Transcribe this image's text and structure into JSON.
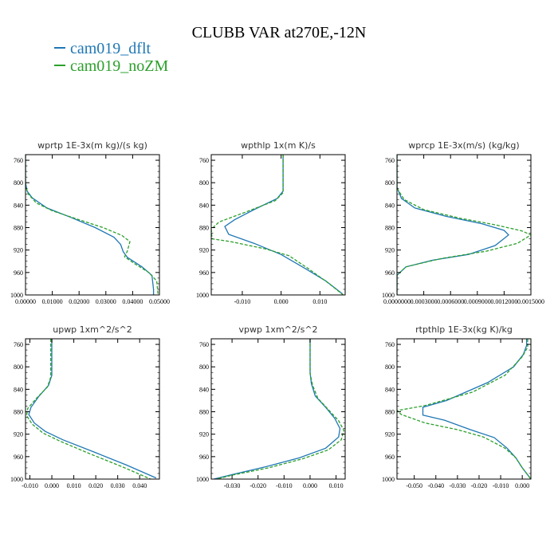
{
  "title": "CLUBB VAR at270E,-12N",
  "legend": [
    {
      "name": "cam019_dflt",
      "color": "#1f77b4"
    },
    {
      "name": "cam019_noZM",
      "color": "#2ca02c"
    }
  ],
  "chart_data": [
    {
      "type": "line",
      "title": "wprtp  1E-3x(m kg)/(s kg)",
      "xlim": [
        0.0,
        0.05
      ],
      "xticks": [
        0.0,
        0.01,
        0.02,
        0.03,
        0.04,
        0.05
      ],
      "xticklabels": [
        "0.00000",
        "0.01000",
        "0.02000",
        "0.03000",
        "0.04000",
        "0.05000"
      ],
      "ylim": [
        1000,
        750
      ],
      "yticks": [
        760,
        800,
        840,
        880,
        920,
        960,
        1000
      ],
      "yticklabels": [
        "760",
        "800",
        "840",
        "880",
        "920",
        "960",
        "1000"
      ],
      "series": [
        {
          "name": "cam019_dflt",
          "style": "solid",
          "points": [
            [
              0,
              750
            ],
            [
              0,
              800
            ],
            [
              0.0006,
              815
            ],
            [
              0.0025,
              827
            ],
            [
              0.008,
              845
            ],
            [
              0.017,
              862
            ],
            [
              0.026,
              880
            ],
            [
              0.033,
              897
            ],
            [
              0.0355,
              910
            ],
            [
              0.0365,
              923
            ],
            [
              0.038,
              933
            ],
            [
              0.0435,
              950
            ],
            [
              0.0472,
              965
            ],
            [
              0.0478,
              990
            ],
            [
              0.0478,
              1000
            ]
          ]
        },
        {
          "name": "cam019_noZM",
          "style": "dashed",
          "points": [
            [
              0,
              750
            ],
            [
              0,
              806
            ],
            [
              0.001,
              820
            ],
            [
              0.004,
              836
            ],
            [
              0.01,
              850
            ],
            [
              0.02,
              866
            ],
            [
              0.029,
              880
            ],
            [
              0.036,
              894
            ],
            [
              0.039,
              905
            ],
            [
              0.038,
              922
            ],
            [
              0.037,
              932
            ],
            [
              0.041,
              945
            ],
            [
              0.046,
              960
            ],
            [
              0.049,
              975
            ],
            [
              0.0495,
              1000
            ]
          ]
        }
      ]
    },
    {
      "type": "line",
      "title": "wpthlp  1x(m K)/s",
      "xlim": [
        -0.018,
        0.0165
      ],
      "xticks": [
        -0.01,
        0.0,
        0.01
      ],
      "xticklabels": [
        "-0.010",
        "0.000",
        "0.010"
      ],
      "ylim": [
        1000,
        750
      ],
      "yticks": [
        760,
        800,
        840,
        880,
        920,
        960,
        1000
      ],
      "yticklabels": [
        "760",
        "800",
        "840",
        "880",
        "920",
        "960",
        "1000"
      ],
      "series": [
        {
          "name": "cam019_dflt",
          "style": "solid",
          "points": [
            [
              0.0005,
              750
            ],
            [
              0.0005,
              815
            ],
            [
              -0.001,
              828
            ],
            [
              -0.007,
              848
            ],
            [
              -0.012,
              866
            ],
            [
              -0.0145,
              878
            ],
            [
              -0.0135,
              892
            ],
            [
              -0.007,
              908
            ],
            [
              0.0,
              928
            ],
            [
              0.005,
              948
            ],
            [
              0.0115,
              975
            ],
            [
              0.0158,
              998
            ]
          ]
        },
        {
          "name": "cam019_noZM",
          "style": "dashed",
          "points": [
            [
              0.0005,
              750
            ],
            [
              0.0005,
              818
            ],
            [
              -0.0015,
              832
            ],
            [
              -0.009,
              852
            ],
            [
              -0.016,
              870
            ],
            [
              -0.018,
              883
            ],
            [
              -0.0178,
              900
            ],
            [
              -0.013,
              905
            ],
            [
              -0.004,
              918
            ],
            [
              0.002,
              930
            ],
            [
              0.007,
              953
            ],
            [
              0.012,
              978
            ],
            [
              0.016,
              1000
            ]
          ]
        }
      ]
    },
    {
      "type": "line",
      "title": "wprcp  1E-3x(m/s) (kg/kg)",
      "xlim": [
        0.0,
        0.0015
      ],
      "xticks": [
        0.0,
        0.0003,
        0.0006,
        0.0009,
        0.0012,
        0.0015
      ],
      "xticklabels": [
        "0.0000000",
        "0.0003000",
        "0.0006000",
        "0.0009000",
        "0.0012000",
        "0.0015000"
      ],
      "ylim": [
        1000,
        750
      ],
      "yticks": [
        760,
        800,
        840,
        880,
        920,
        960,
        1000
      ],
      "yticklabels": [
        "760",
        "800",
        "840",
        "880",
        "920",
        "960",
        "1000"
      ],
      "series": [
        {
          "name": "cam019_dflt",
          "style": "solid",
          "points": [
            [
              0,
              750
            ],
            [
              0,
              808
            ],
            [
              5e-05,
              828
            ],
            [
              0.0002,
              845
            ],
            [
              0.00055,
              860
            ],
            [
              0.00095,
              873
            ],
            [
              0.0012,
              885
            ],
            [
              0.00125,
              893
            ],
            [
              0.0011,
              912
            ],
            [
              0.0008,
              928
            ],
            [
              0.0004,
              938
            ],
            [
              0.0001,
              950
            ],
            [
              0,
              965
            ],
            [
              0,
              1000
            ]
          ]
        },
        {
          "name": "cam019_noZM",
          "style": "dashed",
          "points": [
            [
              0,
              750
            ],
            [
              0,
              810
            ],
            [
              8e-05,
              830
            ],
            [
              0.0003,
              848
            ],
            [
              0.0007,
              863
            ],
            [
              0.0011,
              875
            ],
            [
              0.0014,
              886
            ],
            [
              0.0015,
              893
            ],
            [
              0.00135,
              908
            ],
            [
              0.001,
              922
            ],
            [
              0.0005,
              935
            ],
            [
              0.0001,
              950
            ],
            [
              0,
              965
            ],
            [
              0,
              1000
            ]
          ]
        }
      ]
    },
    {
      "type": "line",
      "title": "upwp  1xm^2/s^2",
      "xlim": [
        -0.012,
        0.049
      ],
      "xticks": [
        -0.01,
        0.0,
        0.01,
        0.02,
        0.03,
        0.04
      ],
      "xticklabels": [
        "-0.010",
        "0.000",
        "0.010",
        "0.020",
        "0.030",
        "0.040"
      ],
      "ylim": [
        1000,
        750
      ],
      "yticks": [
        760,
        800,
        840,
        880,
        920,
        960,
        1000
      ],
      "yticklabels": [
        "760",
        "800",
        "840",
        "880",
        "920",
        "960",
        "1000"
      ],
      "series": [
        {
          "name": "cam019_dflt",
          "style": "solid",
          "points": [
            [
              0,
              750
            ],
            [
              0,
              815
            ],
            [
              -0.0015,
              833
            ],
            [
              -0.006,
              853
            ],
            [
              -0.0095,
              872
            ],
            [
              -0.0105,
              885
            ],
            [
              -0.008,
              900
            ],
            [
              -0.003,
              915
            ],
            [
              0.005,
              930
            ],
            [
              0.02,
              953
            ],
            [
              0.034,
              975
            ],
            [
              0.0475,
              998
            ]
          ]
        },
        {
          "name": "cam019_noZM",
          "style": "dashed",
          "points": [
            [
              -0.0005,
              750
            ],
            [
              -0.0005,
              818
            ],
            [
              -0.002,
              836
            ],
            [
              -0.007,
              856
            ],
            [
              -0.011,
              874
            ],
            [
              -0.0115,
              887
            ],
            [
              -0.009,
              902
            ],
            [
              -0.004,
              918
            ],
            [
              0.004,
              933
            ],
            [
              0.018,
              956
            ],
            [
              0.032,
              978
            ],
            [
              0.045,
              1000
            ]
          ]
        }
      ]
    },
    {
      "type": "line",
      "title": "vpwp  1xm^2/s^2",
      "xlim": [
        -0.038,
        0.0135
      ],
      "xticks": [
        -0.03,
        -0.02,
        -0.01,
        0.0,
        0.01
      ],
      "xticklabels": [
        "-0.030",
        "-0.020",
        "-0.010",
        "0.000",
        "0.010"
      ],
      "ylim": [
        1000,
        750
      ],
      "yticks": [
        760,
        800,
        840,
        880,
        920,
        960,
        1000
      ],
      "yticklabels": [
        "760",
        "800",
        "840",
        "880",
        "920",
        "960",
        "1000"
      ],
      "series": [
        {
          "name": "cam019_dflt",
          "style": "solid",
          "points": [
            [
              0,
              750
            ],
            [
              0,
              810
            ],
            [
              0.0005,
              830
            ],
            [
              0.002,
              852
            ],
            [
              0.006,
              872
            ],
            [
              0.0095,
              892
            ],
            [
              0.0115,
              910
            ],
            [
              0.011,
              925
            ],
            [
              0.006,
              945
            ],
            [
              -0.004,
              962
            ],
            [
              -0.017,
              978
            ],
            [
              -0.03,
              992
            ],
            [
              -0.037,
              1000
            ]
          ]
        },
        {
          "name": "cam019_noZM",
          "style": "dashed",
          "points": [
            [
              0,
              750
            ],
            [
              0,
              812
            ],
            [
              0.001,
              833
            ],
            [
              0.003,
              856
            ],
            [
              0.007,
              876
            ],
            [
              0.011,
              896
            ],
            [
              0.013,
              913
            ],
            [
              0.012,
              930
            ],
            [
              0.007,
              948
            ],
            [
              -0.003,
              964
            ],
            [
              -0.016,
              980
            ],
            [
              -0.03,
              993
            ],
            [
              -0.036,
              1000
            ]
          ]
        }
      ]
    },
    {
      "type": "line",
      "title": "rtpthlp  1E-3x(kg K)/kg",
      "xlim": [
        -0.058,
        0.004
      ],
      "xticks": [
        -0.05,
        -0.04,
        -0.03,
        -0.02,
        -0.01,
        0.0
      ],
      "xticklabels": [
        "-0.050",
        "-0.040",
        "-0.030",
        "-0.020",
        "-0.010",
        "0.000"
      ],
      "ylim": [
        1000,
        750
      ],
      "yticks": [
        760,
        800,
        840,
        880,
        920,
        960,
        1000
      ],
      "yticklabels": [
        "760",
        "800",
        "840",
        "880",
        "920",
        "960",
        "1000"
      ],
      "series": [
        {
          "name": "cam019_dflt",
          "style": "solid",
          "points": [
            [
              0.002,
              750
            ],
            [
              0.002,
              762
            ],
            [
              0.0005,
              778
            ],
            [
              -0.004,
              800
            ],
            [
              -0.016,
              828
            ],
            [
              -0.035,
              860
            ],
            [
              -0.046,
              872
            ],
            [
              -0.046,
              886
            ],
            [
              -0.036,
              895
            ],
            [
              -0.024,
              912
            ],
            [
              -0.013,
              926
            ],
            [
              -0.007,
              945
            ],
            [
              -0.003,
              962
            ],
            [
              0,
              980
            ],
            [
              0.004,
              1000
            ]
          ]
        },
        {
          "name": "cam019_noZM",
          "style": "dashed",
          "points": [
            [
              0.0025,
              750
            ],
            [
              0.0025,
              765
            ],
            [
              0,
              782
            ],
            [
              -0.008,
              815
            ],
            [
              -0.023,
              845
            ],
            [
              -0.045,
              869
            ],
            [
              -0.058,
              878
            ],
            [
              -0.056,
              885
            ],
            [
              -0.045,
              900
            ],
            [
              -0.03,
              912
            ],
            [
              -0.018,
              925
            ],
            [
              -0.008,
              945
            ],
            [
              -0.003,
              962
            ],
            [
              0,
              980
            ],
            [
              0.004,
              1000
            ]
          ]
        }
      ]
    }
  ]
}
